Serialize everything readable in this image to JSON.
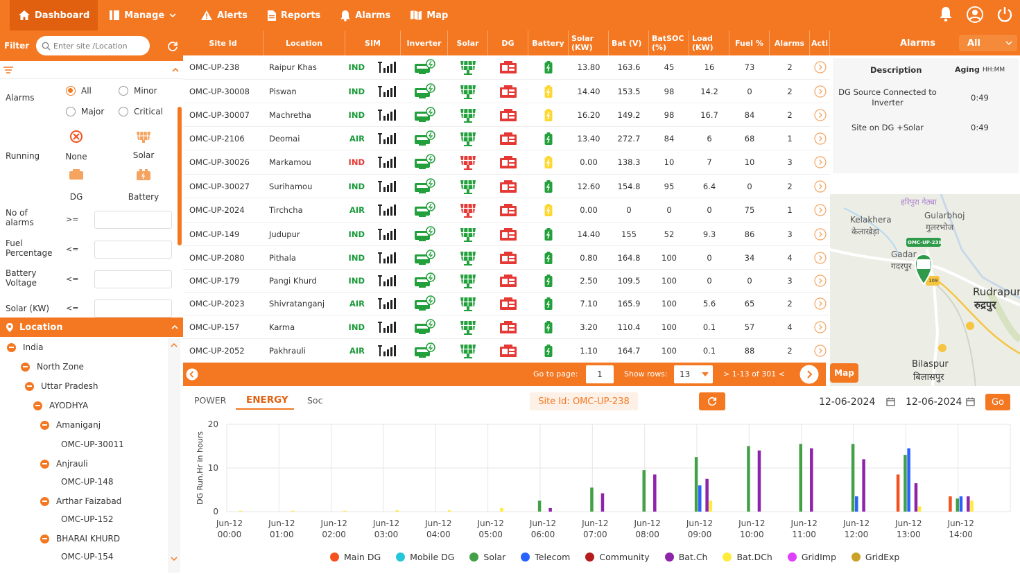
{
  "nav": {
    "items": [
      {
        "label": "Dashboard",
        "icon": "home-icon"
      },
      {
        "label": "Manage",
        "icon": "manage-icon"
      },
      {
        "label": "Alerts",
        "icon": "warning-icon"
      },
      {
        "label": "Reports",
        "icon": "report-icon"
      },
      {
        "label": "Alarms",
        "icon": "bell-icon"
      },
      {
        "label": "Map",
        "icon": "map-icon"
      }
    ]
  },
  "filter": {
    "label": "Filter",
    "search_placeholder": "Enter site /Location",
    "alarms_label": "Alarms",
    "alarm_options": [
      "All",
      "Minor",
      "Major",
      "Critical"
    ],
    "alarm_selected": "All",
    "running_label": "Running",
    "running_options": [
      "None",
      "Solar",
      "DG",
      "Battery"
    ],
    "no_alarms_label": "No of alarms",
    "no_alarms_op": ">=",
    "fuel_label": "Fuel Percentage",
    "fuel_op": "<=",
    "battery_label": "Battery Voltage",
    "battery_op": "<=",
    "solar_label": "Solar (KW)",
    "solar_op": "<="
  },
  "location": {
    "title": "Location",
    "tree": [
      {
        "label": "India",
        "expanded": true
      },
      {
        "label": "North Zone",
        "expanded": true
      },
      {
        "label": "Uttar Pradesh",
        "expanded": true
      },
      {
        "label": "AYODHYA",
        "expanded": true
      },
      {
        "label": "Amaniganj",
        "expanded": true
      },
      {
        "label": "OMC-UP-30011",
        "expanded": false
      },
      {
        "label": "Anjrauli",
        "expanded": true
      },
      {
        "label": "OMC-UP-148",
        "expanded": false
      },
      {
        "label": "Arthar Faizabad",
        "expanded": true
      },
      {
        "label": "OMC-UP-152",
        "expanded": false
      },
      {
        "label": "BHARAI KHURD",
        "expanded": true
      },
      {
        "label": "OMC-UP-154",
        "expanded": false
      }
    ]
  },
  "table": {
    "columns": [
      "Site Id",
      "Location",
      "SIM",
      "Inverter",
      "Solar",
      "DG",
      "Battery",
      "Solar (KW)",
      "Bat (V)",
      "BatSOC (%)",
      "Load (KW)",
      "Fuel %",
      "Alarms",
      "Acti"
    ],
    "rows": [
      {
        "site": "OMC-UP-238",
        "loc": "Raipur Khas",
        "sim": "IND",
        "solar_status": "green",
        "battery": "green",
        "solar_kw": "13.80",
        "bat_v": "163.6",
        "soc": "45",
        "load": "16",
        "fuel": "73",
        "alarms": "2"
      },
      {
        "site": "OMC-UP-30008",
        "loc": "Piswan",
        "sim": "IND",
        "solar_status": "green",
        "battery": "yellow",
        "solar_kw": "14.40",
        "bat_v": "153.5",
        "soc": "98",
        "load": "14.2",
        "fuel": "0",
        "alarms": "2"
      },
      {
        "site": "OMC-UP-30007",
        "loc": "Machretha",
        "sim": "IND",
        "solar_status": "green",
        "battery": "yellow",
        "solar_kw": "16.20",
        "bat_v": "149.2",
        "soc": "98",
        "load": "16.7",
        "fuel": "84",
        "alarms": "2"
      },
      {
        "site": "OMC-UP-2106",
        "loc": "Deomai",
        "sim": "AIR",
        "solar_status": "green",
        "battery": "green",
        "solar_kw": "13.40",
        "bat_v": "272.7",
        "soc": "84",
        "load": "6",
        "fuel": "68",
        "alarms": "1"
      },
      {
        "site": "OMC-UP-30026",
        "loc": "Markamou",
        "sim": "IND",
        "solar_status": "red",
        "battery": "yellow",
        "solar_kw": "0.00",
        "bat_v": "138.3",
        "soc": "10",
        "load": "7",
        "fuel": "10",
        "alarms": "3"
      },
      {
        "site": "OMC-UP-30027",
        "loc": "Surihamou",
        "sim": "IND",
        "solar_status": "green",
        "battery": "green",
        "solar_kw": "12.60",
        "bat_v": "154.8",
        "soc": "95",
        "load": "6.4",
        "fuel": "0",
        "alarms": "2"
      },
      {
        "site": "OMC-UP-2024",
        "loc": "Tirchcha",
        "sim": "AIR",
        "solar_status": "red",
        "battery": "yellow",
        "solar_kw": "0.00",
        "bat_v": "0",
        "soc": "0",
        "load": "0",
        "fuel": "75",
        "alarms": "1"
      },
      {
        "site": "OMC-UP-149",
        "loc": "Judupur",
        "sim": "IND",
        "solar_status": "green",
        "battery": "green",
        "solar_kw": "14.40",
        "bat_v": "155",
        "soc": "52",
        "load": "9.3",
        "fuel": "86",
        "alarms": "3"
      },
      {
        "site": "OMC-UP-2080",
        "loc": "Pithala",
        "sim": "IND",
        "solar_status": "green",
        "battery": "green",
        "solar_kw": "0.80",
        "bat_v": "164.8",
        "soc": "100",
        "load": "0",
        "fuel": "34",
        "alarms": "4"
      },
      {
        "site": "OMC-UP-179",
        "loc": "Pangi Khurd",
        "sim": "IND",
        "solar_status": "green",
        "battery": "green",
        "solar_kw": "2.50",
        "bat_v": "109.5",
        "soc": "100",
        "load": "0",
        "fuel": "0",
        "alarms": "3"
      },
      {
        "site": "OMC-UP-2023",
        "loc": "Shivratanganj",
        "sim": "AIR",
        "solar_status": "green",
        "battery": "green",
        "solar_kw": "7.10",
        "bat_v": "165.9",
        "soc": "100",
        "load": "5.6",
        "fuel": "65",
        "alarms": "2"
      },
      {
        "site": "OMC-UP-157",
        "loc": "Karma",
        "sim": "IND",
        "solar_status": "green",
        "battery": "green",
        "solar_kw": "3.20",
        "bat_v": "110.4",
        "soc": "100",
        "load": "0.1",
        "fuel": "57",
        "alarms": "4"
      },
      {
        "site": "OMC-UP-2052",
        "loc": "Pakhrauli",
        "sim": "AIR",
        "solar_status": "green",
        "battery": "green",
        "solar_kw": "1.10",
        "bat_v": "164.7",
        "soc": "100",
        "load": "0.1",
        "fuel": "88",
        "alarms": "2"
      }
    ]
  },
  "pager": {
    "goto_label": "Go to page:",
    "page": "1",
    "rows_label": "Show rows:",
    "rows": "13",
    "range": "> 1-13 of 301 <"
  },
  "alarms_panel": {
    "title": "Alarms",
    "filter": "All",
    "desc_header": "Description",
    "aging_header": "Aging",
    "aging_unit": "HH:MM",
    "items": [
      {
        "desc": "DG Source Connected to Inverter",
        "aging": "0:49"
      },
      {
        "desc": "Site on DG +Solar",
        "aging": "0:49"
      }
    ]
  },
  "map": {
    "button": "Map",
    "labels": [
      "हरिपुरा गेठ्या",
      "Kelakhera",
      "केलाखेड़ा",
      "Gularbhoj",
      "गुलरभोज",
      "Gadar",
      "गदरपुर",
      "Rudrapur",
      "रुद्रपुर",
      "Bilaspur",
      "बिलासपुर"
    ],
    "marker": "OMC-UP-238",
    "road": "109"
  },
  "energy": {
    "tabs": [
      "POWER",
      "ENERGY",
      "Soc"
    ],
    "active_tab": "ENERGY",
    "site_label": "Site Id: OMC-UP-238",
    "date_from": "12-06-2024",
    "date_to": "12-06-2024",
    "go": "Go"
  },
  "chart_data": {
    "type": "bar",
    "ylabel": "DG Run.Hr in hours",
    "ylim": [
      0,
      20
    ],
    "yticks": [
      0,
      10,
      20
    ],
    "categories": [
      "Jun-12 00:00",
      "Jun-12 01:00",
      "Jun-12 02:00",
      "Jun-12 03:00",
      "Jun-12 04:00",
      "Jun-12 05:00",
      "Jun-12 06:00",
      "Jun-12 07:00",
      "Jun-12 08:00",
      "Jun-12 09:00",
      "Jun-12 10:00",
      "Jun-12 11:00",
      "Jun-12 12:00",
      "Jun-12 13:00",
      "Jun-12 14:00"
    ],
    "series": [
      {
        "name": "Main DG",
        "color": "#f4511e",
        "values": [
          0,
          0,
          0,
          0,
          0,
          0,
          0,
          0,
          0,
          0,
          0,
          0,
          0,
          8.5,
          3.5
        ]
      },
      {
        "name": "Mobile DG",
        "color": "#26c6da",
        "values": [
          0,
          0,
          0,
          0,
          0,
          0,
          0,
          0,
          0,
          0,
          0,
          0,
          0,
          0,
          0
        ]
      },
      {
        "name": "Solar",
        "color": "#43a047",
        "values": [
          0,
          0,
          0,
          0,
          0,
          0,
          2.5,
          5.5,
          9.5,
          12.5,
          15,
          15.5,
          15.5,
          13,
          3
        ]
      },
      {
        "name": "Telecom",
        "color": "#2962ff",
        "values": [
          0,
          0,
          0,
          0,
          0,
          0,
          0,
          0,
          0,
          6,
          0,
          0,
          3.5,
          14.5,
          3.5
        ]
      },
      {
        "name": "Community",
        "color": "#b71c1c",
        "values": [
          0,
          0,
          0,
          0,
          0,
          0,
          0,
          0,
          0,
          0,
          0,
          0,
          0,
          0,
          0
        ]
      },
      {
        "name": "Bat.Ch",
        "color": "#8e24aa",
        "values": [
          0,
          0,
          0,
          0,
          0,
          0,
          0.8,
          4.2,
          8.5,
          7.5,
          14,
          14.5,
          12,
          6.5,
          3.5
        ]
      },
      {
        "name": "Bat.DCh",
        "color": "#ffeb3b",
        "values": [
          0.2,
          0.2,
          0.2,
          0.3,
          0.3,
          0.8,
          0,
          0,
          0,
          2.5,
          0,
          0,
          0,
          1.2,
          2.5
        ]
      },
      {
        "name": "GridImp",
        "color": "#e040fb",
        "values": [
          0,
          0,
          0,
          0,
          0,
          0,
          0,
          0,
          0,
          0,
          0,
          0,
          0,
          0,
          0
        ]
      },
      {
        "name": "GridExp",
        "color": "#c9a227",
        "values": [
          0,
          0,
          0,
          0,
          0,
          0,
          0,
          0,
          0,
          0,
          0,
          0,
          0,
          0,
          0
        ]
      }
    ],
    "legend_position": "bottom",
    "grid": true
  }
}
